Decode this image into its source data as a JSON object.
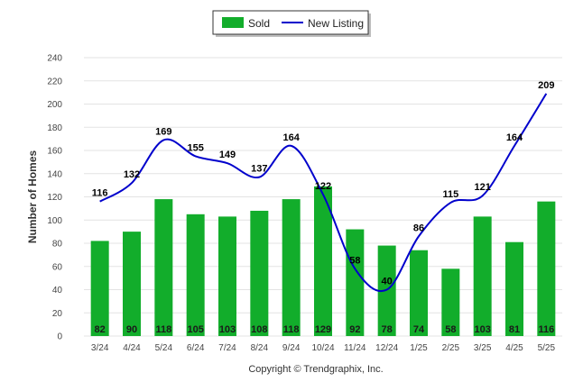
{
  "chart_data": {
    "type": "bar+line",
    "categories": [
      "3/24",
      "4/24",
      "5/24",
      "6/24",
      "7/24",
      "8/24",
      "9/24",
      "10/24",
      "11/24",
      "12/24",
      "1/25",
      "2/25",
      "3/25",
      "4/25",
      "5/25"
    ],
    "series": [
      {
        "name": "Sold",
        "kind": "bar",
        "color": "#12ad2b",
        "values": [
          82,
          90,
          118,
          105,
          103,
          108,
          118,
          129,
          92,
          78,
          74,
          58,
          103,
          81,
          116
        ]
      },
      {
        "name": "New Listing",
        "kind": "line",
        "color": "#0000cc",
        "values": [
          116,
          132,
          169,
          155,
          149,
          137,
          164,
          122,
          58,
          40,
          86,
          115,
          121,
          164,
          209
        ]
      }
    ],
    "ylabel": "Number of Homes",
    "xlabel": "",
    "ylim": [
      0,
      240
    ],
    "yticks": [
      0,
      20,
      40,
      60,
      80,
      100,
      120,
      140,
      160,
      180,
      200,
      220,
      240
    ],
    "grid": true,
    "legend_position": "top-center"
  },
  "footer": {
    "copyright": "Copyright © Trendgraphix, Inc."
  }
}
